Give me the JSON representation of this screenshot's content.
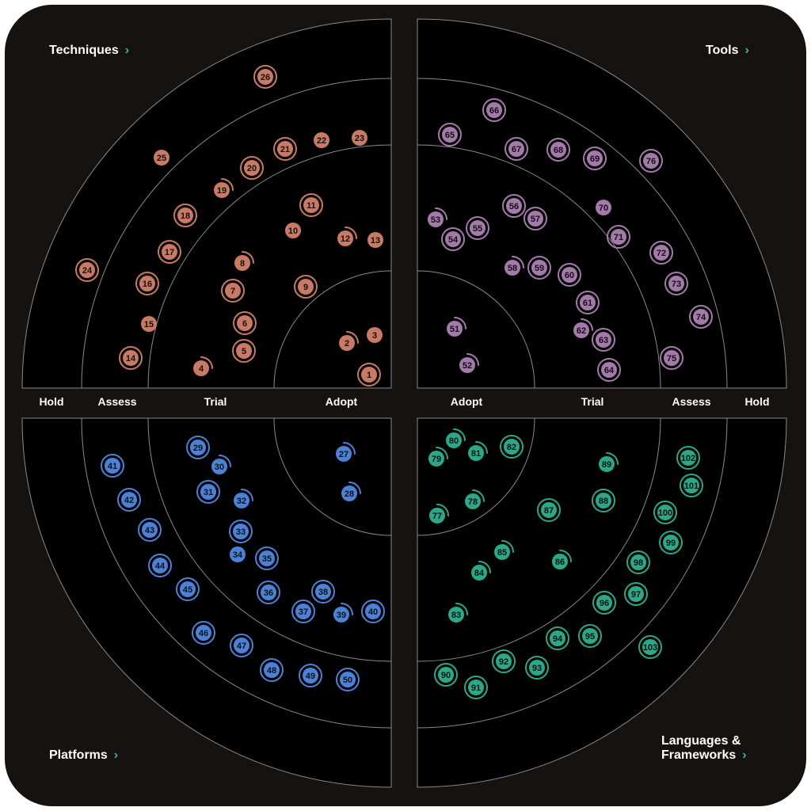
{
  "colors": {
    "frame": "#151210",
    "quadrant_fill": "#000000",
    "ring_line": "#8a8a8a",
    "accent": "#3fb5a3",
    "techniques": "#c97a64",
    "tools": "#a47aaa",
    "platforms": "#4b82d8",
    "languages": "#2ba888",
    "blip_text": "#111111"
  },
  "rings": [
    "Adopt",
    "Trial",
    "Assess",
    "Hold"
  ],
  "quadrants": [
    {
      "id": "techniques",
      "title": "Techniques",
      "color": "#c97a64"
    },
    {
      "id": "tools",
      "title": "Tools",
      "color": "#a47aaa"
    },
    {
      "id": "platforms",
      "title": "Platforms",
      "color": "#4b82d8"
    },
    {
      "id": "languages",
      "title": "Languages & Frameworks",
      "title_line1": "Languages &",
      "title_line2": "Frameworks",
      "color": "#2ba888"
    }
  ],
  "chevron": "›",
  "legend_icons": {
    "blip": "circle-blip-icon",
    "moved": "moved-arc-icon"
  },
  "blips": [
    {
      "n": "1",
      "q": "techniques",
      "style": "ring"
    },
    {
      "n": "2",
      "q": "techniques",
      "style": "arc"
    },
    {
      "n": "3",
      "q": "techniques",
      "style": "plain"
    },
    {
      "n": "4",
      "q": "techniques",
      "style": "arc"
    },
    {
      "n": "5",
      "q": "techniques",
      "style": "ring"
    },
    {
      "n": "6",
      "q": "techniques",
      "style": "ring"
    },
    {
      "n": "7",
      "q": "techniques",
      "style": "ring"
    },
    {
      "n": "8",
      "q": "techniques",
      "style": "arc"
    },
    {
      "n": "9",
      "q": "techniques",
      "style": "ring"
    },
    {
      "n": "10",
      "q": "techniques",
      "style": "plain"
    },
    {
      "n": "11",
      "q": "techniques",
      "style": "ring"
    },
    {
      "n": "12",
      "q": "techniques",
      "style": "arc"
    },
    {
      "n": "13",
      "q": "techniques",
      "style": "plain"
    },
    {
      "n": "14",
      "q": "techniques",
      "style": "ring"
    },
    {
      "n": "15",
      "q": "techniques",
      "style": "plain"
    },
    {
      "n": "16",
      "q": "techniques",
      "style": "ring"
    },
    {
      "n": "17",
      "q": "techniques",
      "style": "ring"
    },
    {
      "n": "18",
      "q": "techniques",
      "style": "ring"
    },
    {
      "n": "19",
      "q": "techniques",
      "style": "arc"
    },
    {
      "n": "20",
      "q": "techniques",
      "style": "ring"
    },
    {
      "n": "21",
      "q": "techniques",
      "style": "ring"
    },
    {
      "n": "22",
      "q": "techniques",
      "style": "plain"
    },
    {
      "n": "23",
      "q": "techniques",
      "style": "plain"
    },
    {
      "n": "24",
      "q": "techniques",
      "style": "ring"
    },
    {
      "n": "25",
      "q": "techniques",
      "style": "plain"
    },
    {
      "n": "26",
      "q": "techniques",
      "style": "ring"
    },
    {
      "n": "27",
      "q": "platforms",
      "style": "arc"
    },
    {
      "n": "28",
      "q": "platforms",
      "style": "arc"
    },
    {
      "n": "29",
      "q": "platforms",
      "style": "ring"
    },
    {
      "n": "30",
      "q": "platforms",
      "style": "arc"
    },
    {
      "n": "31",
      "q": "platforms",
      "style": "ring"
    },
    {
      "n": "32",
      "q": "platforms",
      "style": "arc"
    },
    {
      "n": "33",
      "q": "platforms",
      "style": "ring"
    },
    {
      "n": "34",
      "q": "platforms",
      "style": "plain"
    },
    {
      "n": "35",
      "q": "platforms",
      "style": "ring"
    },
    {
      "n": "36",
      "q": "platforms",
      "style": "ring"
    },
    {
      "n": "37",
      "q": "platforms",
      "style": "ring"
    },
    {
      "n": "38",
      "q": "platforms",
      "style": "ring"
    },
    {
      "n": "39",
      "q": "platforms",
      "style": "arc"
    },
    {
      "n": "40",
      "q": "platforms",
      "style": "ring"
    },
    {
      "n": "41",
      "q": "platforms",
      "style": "ring"
    },
    {
      "n": "42",
      "q": "platforms",
      "style": "ring"
    },
    {
      "n": "43",
      "q": "platforms",
      "style": "ring"
    },
    {
      "n": "44",
      "q": "platforms",
      "style": "ring"
    },
    {
      "n": "45",
      "q": "platforms",
      "style": "ring"
    },
    {
      "n": "46",
      "q": "platforms",
      "style": "ring"
    },
    {
      "n": "47",
      "q": "platforms",
      "style": "ring"
    },
    {
      "n": "48",
      "q": "platforms",
      "style": "ring"
    },
    {
      "n": "49",
      "q": "platforms",
      "style": "ring"
    },
    {
      "n": "50",
      "q": "platforms",
      "style": "ring"
    },
    {
      "n": "51",
      "q": "tools",
      "style": "arc"
    },
    {
      "n": "52",
      "q": "tools",
      "style": "arc"
    },
    {
      "n": "53",
      "q": "tools",
      "style": "arc"
    },
    {
      "n": "54",
      "q": "tools",
      "style": "ring"
    },
    {
      "n": "55",
      "q": "tools",
      "style": "ring"
    },
    {
      "n": "56",
      "q": "tools",
      "style": "ring"
    },
    {
      "n": "57",
      "q": "tools",
      "style": "ring"
    },
    {
      "n": "58",
      "q": "tools",
      "style": "arc"
    },
    {
      "n": "59",
      "q": "tools",
      "style": "ring"
    },
    {
      "n": "60",
      "q": "tools",
      "style": "ring"
    },
    {
      "n": "61",
      "q": "tools",
      "style": "ring"
    },
    {
      "n": "62",
      "q": "tools",
      "style": "arc"
    },
    {
      "n": "63",
      "q": "tools",
      "style": "ring"
    },
    {
      "n": "64",
      "q": "tools",
      "style": "ring"
    },
    {
      "n": "65",
      "q": "tools",
      "style": "ring"
    },
    {
      "n": "66",
      "q": "tools",
      "style": "ring"
    },
    {
      "n": "67",
      "q": "tools",
      "style": "ring"
    },
    {
      "n": "68",
      "q": "tools",
      "style": "ring"
    },
    {
      "n": "69",
      "q": "tools",
      "style": "ring"
    },
    {
      "n": "70",
      "q": "tools",
      "style": "plain"
    },
    {
      "n": "71",
      "q": "tools",
      "style": "ring"
    },
    {
      "n": "72",
      "q": "tools",
      "style": "ring"
    },
    {
      "n": "73",
      "q": "tools",
      "style": "ring"
    },
    {
      "n": "74",
      "q": "tools",
      "style": "ring"
    },
    {
      "n": "75",
      "q": "tools",
      "style": "ring"
    },
    {
      "n": "76",
      "q": "tools",
      "style": "ring"
    },
    {
      "n": "77",
      "q": "languages",
      "style": "arc"
    },
    {
      "n": "78",
      "q": "languages",
      "style": "arc"
    },
    {
      "n": "79",
      "q": "languages",
      "style": "arc"
    },
    {
      "n": "80",
      "q": "languages",
      "style": "arc"
    },
    {
      "n": "81",
      "q": "languages",
      "style": "arc"
    },
    {
      "n": "82",
      "q": "languages",
      "style": "ring"
    },
    {
      "n": "83",
      "q": "languages",
      "style": "arc"
    },
    {
      "n": "84",
      "q": "languages",
      "style": "arc"
    },
    {
      "n": "85",
      "q": "languages",
      "style": "arc"
    },
    {
      "n": "86",
      "q": "languages",
      "style": "arc"
    },
    {
      "n": "87",
      "q": "languages",
      "style": "ring"
    },
    {
      "n": "88",
      "q": "languages",
      "style": "ring"
    },
    {
      "n": "89",
      "q": "languages",
      "style": "arc"
    },
    {
      "n": "90",
      "q": "languages",
      "style": "ring"
    },
    {
      "n": "91",
      "q": "languages",
      "style": "ring"
    },
    {
      "n": "92",
      "q": "languages",
      "style": "ring"
    },
    {
      "n": "93",
      "q": "languages",
      "style": "ring"
    },
    {
      "n": "94",
      "q": "languages",
      "style": "ring"
    },
    {
      "n": "95",
      "q": "languages",
      "style": "ring"
    },
    {
      "n": "96",
      "q": "languages",
      "style": "ring"
    },
    {
      "n": "97",
      "q": "languages",
      "style": "ring"
    },
    {
      "n": "98",
      "q": "languages",
      "style": "ring"
    },
    {
      "n": "99",
      "q": "languages",
      "style": "ring"
    },
    {
      "n": "100",
      "q": "languages",
      "style": "ring"
    },
    {
      "n": "101",
      "q": "languages",
      "style": "ring"
    },
    {
      "n": "102",
      "q": "languages",
      "style": "ring"
    },
    {
      "n": "103",
      "q": "languages",
      "style": "ring"
    }
  ]
}
